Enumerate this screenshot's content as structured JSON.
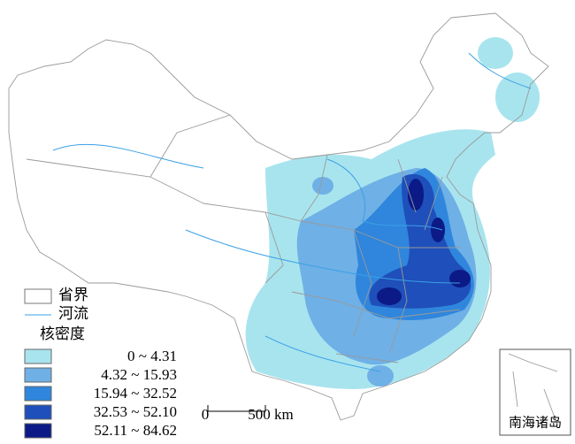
{
  "legend": {
    "province": "省界",
    "river": "河流",
    "title": "核密度",
    "classes": [
      {
        "label": "0 ~ 4.31",
        "color": "#a8e4ee"
      },
      {
        "label": "4.32 ~ 15.93",
        "color": "#6fb0e6"
      },
      {
        "label": "15.94 ~ 32.52",
        "color": "#2f86dc"
      },
      {
        "label": "32.53 ~ 52.10",
        "color": "#1f4fba"
      },
      {
        "label": "52.11 ~ 84.62",
        "color": "#0b1a86"
      }
    ]
  },
  "scale": {
    "start": "0",
    "end": "500 km"
  },
  "inset": {
    "label": "南海诸岛"
  }
}
